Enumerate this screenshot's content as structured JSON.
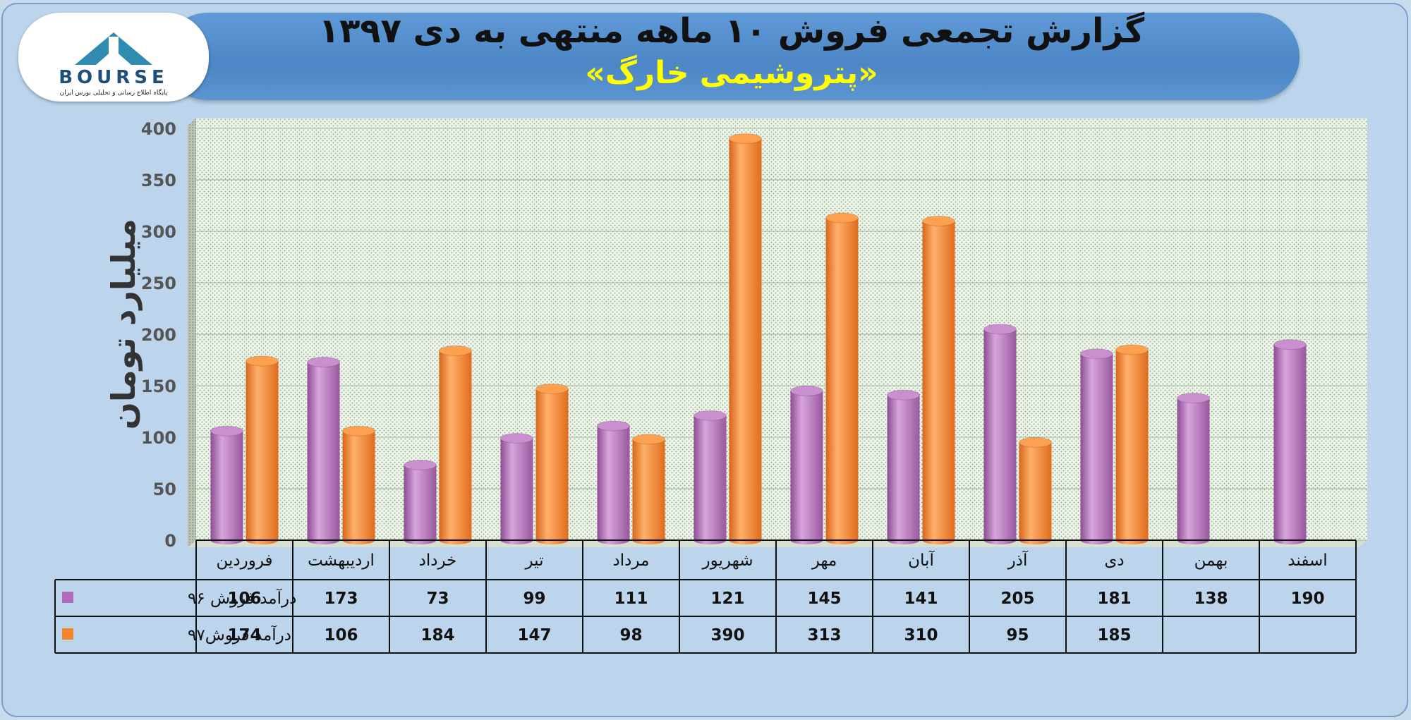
{
  "header": {
    "title": "گزارش تجمعی فروش ۱۰ ماهه منتهی به دی ۱۳۹۷",
    "subtitle": "«پتروشیمی خارگ»"
  },
  "logo": {
    "text": "BOURSE",
    "caption": "پایگاه اطلاع رسانی و تحلیلی بورس ایران"
  },
  "colors": {
    "series1": "#b06db5",
    "series2": "#f5842a",
    "accent_title": "#ffff00",
    "banner": "#4f88c7"
  },
  "chart_data": {
    "type": "bar",
    "ylabel": "میلیارد تومان",
    "ylim": [
      0,
      400
    ],
    "yticks": [
      0,
      50,
      100,
      150,
      200,
      250,
      300,
      350,
      400
    ],
    "grid": true,
    "categories": [
      "فروردین",
      "اردیبهشت",
      "خرداد",
      "تیر",
      "مرداد",
      "شهریور",
      "مهر",
      "آبان",
      "آذر",
      "دی",
      "بهمن",
      "اسفند"
    ],
    "series": [
      {
        "name": "درآمد فروش ۹۶",
        "values": [
          106,
          173,
          73,
          99,
          111,
          121,
          145,
          141,
          205,
          181,
          138,
          190
        ]
      },
      {
        "name": "درآمد فروش۹۷",
        "values": [
          174,
          106,
          184,
          147,
          98,
          390,
          313,
          310,
          95,
          185,
          null,
          null
        ]
      }
    ]
  }
}
